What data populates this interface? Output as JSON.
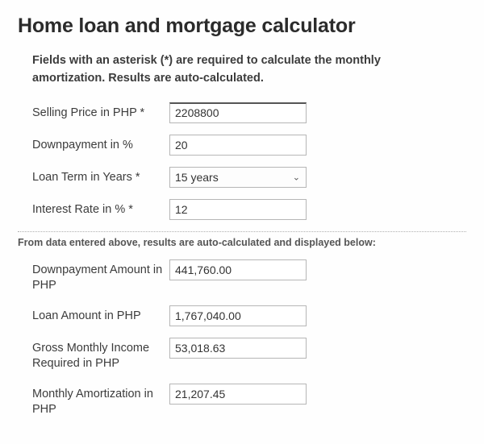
{
  "header": {
    "title": "Home loan and mortgage calculator",
    "subtitle": "Fields with an asterisk (*) are required to calculate the monthly amortization. Results are auto-calculated."
  },
  "inputs": {
    "selling_price": {
      "label": "Selling Price in PHP *",
      "value": "2208800"
    },
    "downpayment_pct": {
      "label": "Downpayment in %",
      "value": "20"
    },
    "loan_term": {
      "label": "Loan Term in Years *",
      "selected": "15 years"
    },
    "interest_rate": {
      "label": "Interest Rate in % *",
      "value": "12"
    }
  },
  "results_note": "From data entered above, results are auto-calculated and displayed below:",
  "results": {
    "downpayment_amount": {
      "label": "Downpayment Amount in PHP",
      "value": "441,760.00"
    },
    "loan_amount": {
      "label": "Loan Amount in PHP",
      "value": "1,767,040.00"
    },
    "gross_income": {
      "label": "Gross Monthly Income Required in PHP",
      "value": "53,018.63"
    },
    "monthly_amort": {
      "label": "Monthly Amortization in PHP",
      "value": "21,207.45"
    }
  }
}
